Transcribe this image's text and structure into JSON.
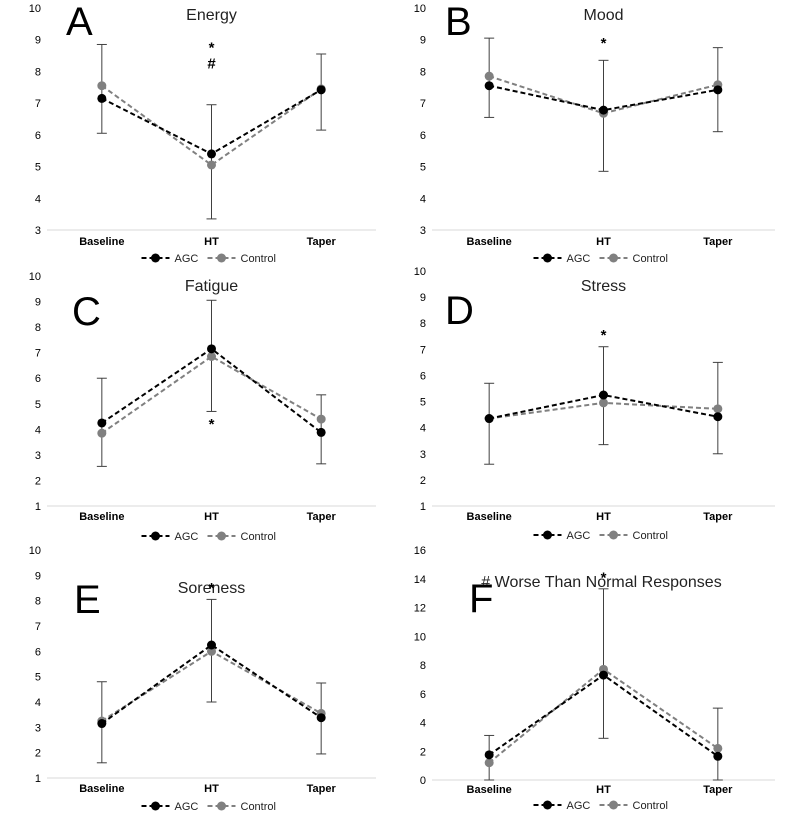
{
  "colors": {
    "agc": "#000000",
    "control": "#808080",
    "errorbar": "#404040",
    "axis": "#d9d9d9"
  },
  "chart_data": [
    {
      "type": "line",
      "panel": "A",
      "title": "Energy",
      "categories": [
        "Baseline",
        "HT",
        "Taper"
      ],
      "ylim": [
        3,
        10
      ],
      "yticks": [
        3,
        4,
        5,
        6,
        7,
        8,
        9,
        10
      ],
      "series": [
        {
          "name": "AGC",
          "values": [
            7.15,
            5.4,
            7.42
          ]
        },
        {
          "name": "Control",
          "values": [
            7.55,
            5.05,
            7.45
          ],
          "err_lo": [
            6.05,
            3.35,
            6.15
          ],
          "err_hi": [
            8.85,
            6.95,
            8.55
          ]
        }
      ],
      "annotations": [
        {
          "category": "HT",
          "y": 8.75,
          "text": "*"
        },
        {
          "category": "HT",
          "y": 8.25,
          "text": "#"
        }
      ]
    },
    {
      "type": "line",
      "panel": "B",
      "title": "Mood",
      "categories": [
        "Baseline",
        "HT",
        "Taper"
      ],
      "ylim": [
        3,
        10
      ],
      "yticks": [
        3,
        4,
        5,
        6,
        7,
        8,
        9,
        10
      ],
      "series": [
        {
          "name": "AGC",
          "values": [
            7.55,
            6.78,
            7.42
          ]
        },
        {
          "name": "Control",
          "values": [
            7.85,
            6.68,
            7.58
          ],
          "err_lo": [
            6.55,
            4.85,
            6.1
          ],
          "err_hi": [
            9.05,
            8.35,
            8.75
          ]
        }
      ],
      "annotations": [
        {
          "category": "HT",
          "y": 8.9,
          "text": "*"
        }
      ]
    },
    {
      "type": "line",
      "panel": "C",
      "title": "Fatigue",
      "categories": [
        "Baseline",
        "HT",
        "Taper"
      ],
      "ylim": [
        1,
        10
      ],
      "yticks": [
        1,
        2,
        3,
        4,
        5,
        6,
        7,
        8,
        9,
        10
      ],
      "series": [
        {
          "name": "AGC",
          "values": [
            4.25,
            7.15,
            3.88
          ]
        },
        {
          "name": "Control",
          "values": [
            3.85,
            6.85,
            4.4
          ],
          "err_lo": [
            2.55,
            4.7,
            2.65
          ],
          "err_hi": [
            6.0,
            9.05,
            5.35
          ]
        }
      ],
      "annotations": [
        {
          "category": "HT",
          "y": 4.2,
          "text": "*"
        }
      ]
    },
    {
      "type": "line",
      "panel": "D",
      "title": "Stress",
      "categories": [
        "Baseline",
        "HT",
        "Taper"
      ],
      "ylim": [
        1,
        10
      ],
      "yticks": [
        1,
        2,
        3,
        4,
        5,
        6,
        7,
        8,
        9,
        10
      ],
      "series": [
        {
          "name": "AGC",
          "values": [
            4.35,
            5.25,
            4.42
          ]
        },
        {
          "name": "Control",
          "values": [
            4.35,
            4.95,
            4.72
          ],
          "err_lo": [
            2.6,
            3.35,
            3.0
          ],
          "err_hi": [
            5.7,
            7.1,
            6.5
          ]
        }
      ],
      "annotations": [
        {
          "category": "HT",
          "y": 7.55,
          "text": "*"
        }
      ]
    },
    {
      "type": "line",
      "panel": "E",
      "title": "Soreness",
      "categories": [
        "Baseline",
        "HT",
        "Taper"
      ],
      "ylim": [
        1,
        10
      ],
      "yticks": [
        1,
        2,
        3,
        4,
        5,
        6,
        7,
        8,
        9,
        10
      ],
      "series": [
        {
          "name": "AGC",
          "values": [
            3.15,
            6.25,
            3.38
          ]
        },
        {
          "name": "Control",
          "values": [
            3.25,
            6.0,
            3.55
          ],
          "err_lo": [
            1.6,
            4.0,
            1.95
          ],
          "err_hi": [
            4.8,
            8.05,
            4.75
          ]
        }
      ],
      "annotations": [
        {
          "category": "HT",
          "y": 8.5,
          "text": "*"
        }
      ]
    },
    {
      "type": "line",
      "panel": "F",
      "title": "# Worse Than Normal Responses",
      "categories": [
        "Baseline",
        "HT",
        "Taper"
      ],
      "ylim": [
        0,
        16
      ],
      "yticks": [
        0,
        2,
        4,
        6,
        8,
        10,
        12,
        14,
        16
      ],
      "series": [
        {
          "name": "AGC",
          "values": [
            1.75,
            7.3,
            1.65
          ]
        },
        {
          "name": "Control",
          "values": [
            1.2,
            7.7,
            2.2
          ],
          "err_lo": [
            0.0,
            2.9,
            0.0
          ],
          "err_hi": [
            3.1,
            13.3,
            5.0
          ]
        }
      ],
      "annotations": [
        {
          "category": "HT",
          "y": 14.1,
          "text": "*"
        }
      ]
    }
  ]
}
